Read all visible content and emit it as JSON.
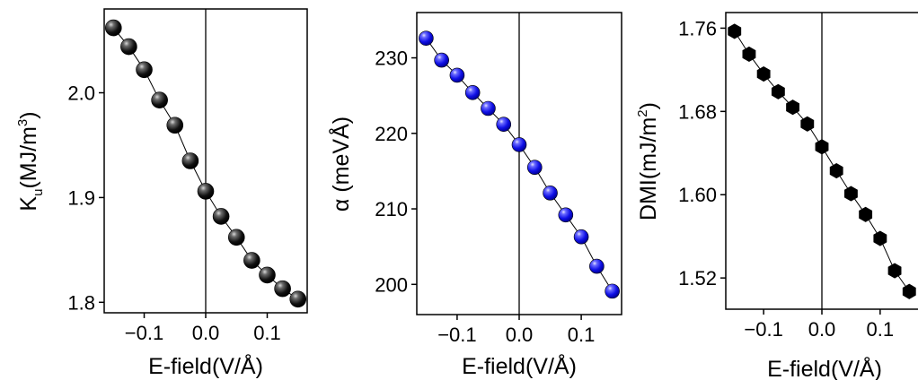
{
  "chart_data": [
    {
      "type": "scatter",
      "xlabel": "E-field(V/Å)",
      "ylabel": {
        "main": "K",
        "sub": "u",
        "unit": "(MJ/m",
        "sup": "3",
        "close": ")"
      },
      "xlim": [
        -0.165,
        0.165
      ],
      "ylim": [
        1.79,
        2.08
      ],
      "xticks": [
        -0.1,
        0.0,
        0.1
      ],
      "xtick_labels": [
        "−0.1",
        "0.0",
        "0.1"
      ],
      "yticks": [
        1.8,
        1.9,
        2.0
      ],
      "ytick_labels": [
        "1.8",
        "1.9",
        "2.0"
      ],
      "marker": "sphere",
      "color": "#000000",
      "zero_line": true,
      "x": [
        -0.15,
        -0.125,
        -0.1,
        -0.075,
        -0.05,
        -0.025,
        0.0,
        0.025,
        0.05,
        0.075,
        0.1,
        0.125,
        0.15
      ],
      "y": [
        2.062,
        2.044,
        2.022,
        1.993,
        1.969,
        1.935,
        1.906,
        1.882,
        1.862,
        1.84,
        1.826,
        1.813,
        1.803
      ]
    },
    {
      "type": "scatter",
      "xlabel": "E-field(V/Å)",
      "ylabel": {
        "main": "α (meVÅ)"
      },
      "xlim": [
        -0.165,
        0.165
      ],
      "ylim": [
        196,
        236
      ],
      "xticks": [
        -0.1,
        0.0,
        0.1
      ],
      "xtick_labels": [
        "−0.1",
        "0.0",
        "0.1"
      ],
      "yticks": [
        200,
        210,
        220,
        230
      ],
      "ytick_labels": [
        "200",
        "210",
        "220",
        "230"
      ],
      "marker": "sphere",
      "color": "#1a1aff",
      "zero_line": true,
      "x": [
        -0.15,
        -0.125,
        -0.1,
        -0.075,
        -0.05,
        -0.025,
        0.0,
        0.025,
        0.05,
        0.075,
        0.1,
        0.125,
        0.15
      ],
      "y": [
        232.6,
        229.7,
        227.7,
        225.4,
        223.3,
        221.2,
        218.5,
        215.5,
        212.1,
        209.2,
        206.3,
        202.4,
        199.1
      ]
    },
    {
      "type": "scatter",
      "xlabel": "E-field(V/Å)",
      "ylabel": {
        "main": "DMI",
        "unit": "(mJ/m",
        "sup": "2",
        "close": ")"
      },
      "xlim": [
        -0.165,
        0.165
      ],
      "ylim": [
        1.49,
        1.775
      ],
      "xticks": [
        -0.1,
        0.0,
        0.1
      ],
      "xtick_labels": [
        "−0.1",
        "0.0",
        "0.1"
      ],
      "yticks": [
        1.52,
        1.6,
        1.68,
        1.76
      ],
      "ytick_labels": [
        "1.52",
        "1.60",
        "1.68",
        "1.76"
      ],
      "marker": "hexagon",
      "color": "#000000",
      "zero_line": true,
      "x": [
        -0.15,
        -0.125,
        -0.1,
        -0.075,
        -0.05,
        -0.025,
        0.0,
        0.025,
        0.05,
        0.075,
        0.1,
        0.125,
        0.15
      ],
      "y": [
        1.757,
        1.735,
        1.716,
        1.699,
        1.684,
        1.668,
        1.646,
        1.623,
        1.601,
        1.581,
        1.558,
        1.527,
        1.507
      ]
    }
  ]
}
